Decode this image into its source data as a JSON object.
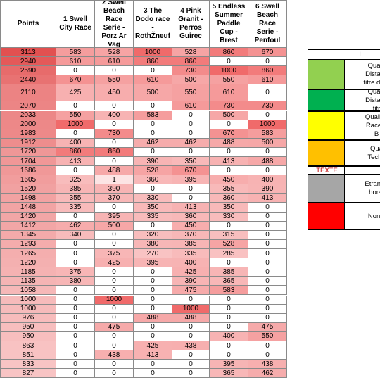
{
  "table": {
    "header": [
      "Points",
      "1 Swell City Race",
      "2 Swell Beach Race Serie - Porz Ar Vag",
      "3 The Dodo race - RothŽneuf",
      "4 Pink Granit - Perros Guirec",
      "5 Endless Summer Paddle Cup - Brest",
      "6 Swell Beach Race Serie - Penfoul"
    ],
    "rows": [
      [
        3113,
        583,
        528,
        1000,
        528,
        860,
        670
      ],
      [
        2940,
        610,
        610,
        860,
        860,
        0,
        0
      ],
      [
        2590,
        0,
        0,
        0,
        730,
        1000,
        860
      ],
      [
        2440,
        670,
        550,
        610,
        500,
        550,
        610
      ],
      [
        2110,
        425,
        450,
        500,
        550,
        610,
        0
      ],
      [
        2070,
        0,
        0,
        0,
        610,
        730,
        730
      ],
      [
        2033,
        550,
        400,
        583,
        0,
        500,
        0
      ],
      [
        2000,
        1000,
        0,
        0,
        0,
        0,
        1000
      ],
      [
        1983,
        0,
        730,
        0,
        0,
        670,
        583
      ],
      [
        1912,
        400,
        0,
        462,
        462,
        488,
        500
      ],
      [
        1720,
        860,
        860,
        0,
        0,
        0,
        0
      ],
      [
        1704,
        413,
        0,
        390,
        350,
        413,
        488
      ],
      [
        1686,
        0,
        488,
        528,
        670,
        0,
        0
      ],
      [
        1605,
        325,
        1,
        360,
        395,
        450,
        400
      ],
      [
        1520,
        385,
        390,
        0,
        0,
        355,
        390
      ],
      [
        1498,
        355,
        370,
        330,
        0,
        360,
        413
      ],
      [
        1448,
        335,
        0,
        350,
        413,
        350,
        0
      ],
      [
        1420,
        0,
        395,
        335,
        360,
        330,
        0
      ],
      [
        1412,
        462,
        500,
        0,
        450,
        0,
        0
      ],
      [
        1345,
        340,
        0,
        320,
        370,
        315,
        0
      ],
      [
        1293,
        0,
        0,
        380,
        385,
        528,
        0
      ],
      [
        1265,
        0,
        375,
        270,
        335,
        285,
        0
      ],
      [
        1220,
        0,
        425,
        395,
        400,
        0,
        0
      ],
      [
        1185,
        375,
        0,
        0,
        425,
        385,
        0
      ],
      [
        1135,
        380,
        0,
        0,
        390,
        365,
        0
      ],
      [
        1058,
        0,
        0,
        0,
        475,
        583,
        0
      ],
      [
        1000,
        0,
        1000,
        0,
        0,
        0,
        0
      ],
      [
        1000,
        0,
        0,
        0,
        1000,
        0,
        0
      ],
      [
        976,
        0,
        0,
        488,
        488,
        0,
        0
      ],
      [
        950,
        0,
        475,
        0,
        0,
        0,
        475
      ],
      [
        950,
        0,
        0,
        0,
        0,
        400,
        550
      ],
      [
        863,
        0,
        0,
        425,
        438,
        0,
        0
      ],
      [
        851,
        0,
        438,
        413,
        0,
        0,
        0
      ],
      [
        833,
        0,
        0,
        0,
        0,
        395,
        438
      ],
      [
        827,
        0,
        0,
        0,
        0,
        365,
        462
      ]
    ]
  },
  "legend": {
    "title": "L",
    "entries": [
      {
        "color": "#92d050",
        "lines": [
          "Qualif",
          "Distanc",
          "titre du g"
        ]
      },
      {
        "color": "#00b050",
        "lines": [
          "Qualif",
          "Distanc",
          "titr"
        ]
      },
      {
        "color": "#ffff00",
        "lines": [
          "Qualifié",
          "Race a",
          "B"
        ]
      },
      {
        "color": "#ffc000",
        "lines": [
          "Qua",
          "Techn"
        ]
      },
      {
        "swatch_text": "TEXTE",
        "swatch_text_color": "#c00000",
        "lines": []
      },
      {
        "color": "#a6a6a6",
        "lines": [
          "Etrange",
          "hors-"
        ]
      },
      {
        "color": "#ff0000",
        "lines": [
          "Non li"
        ]
      }
    ]
  }
}
